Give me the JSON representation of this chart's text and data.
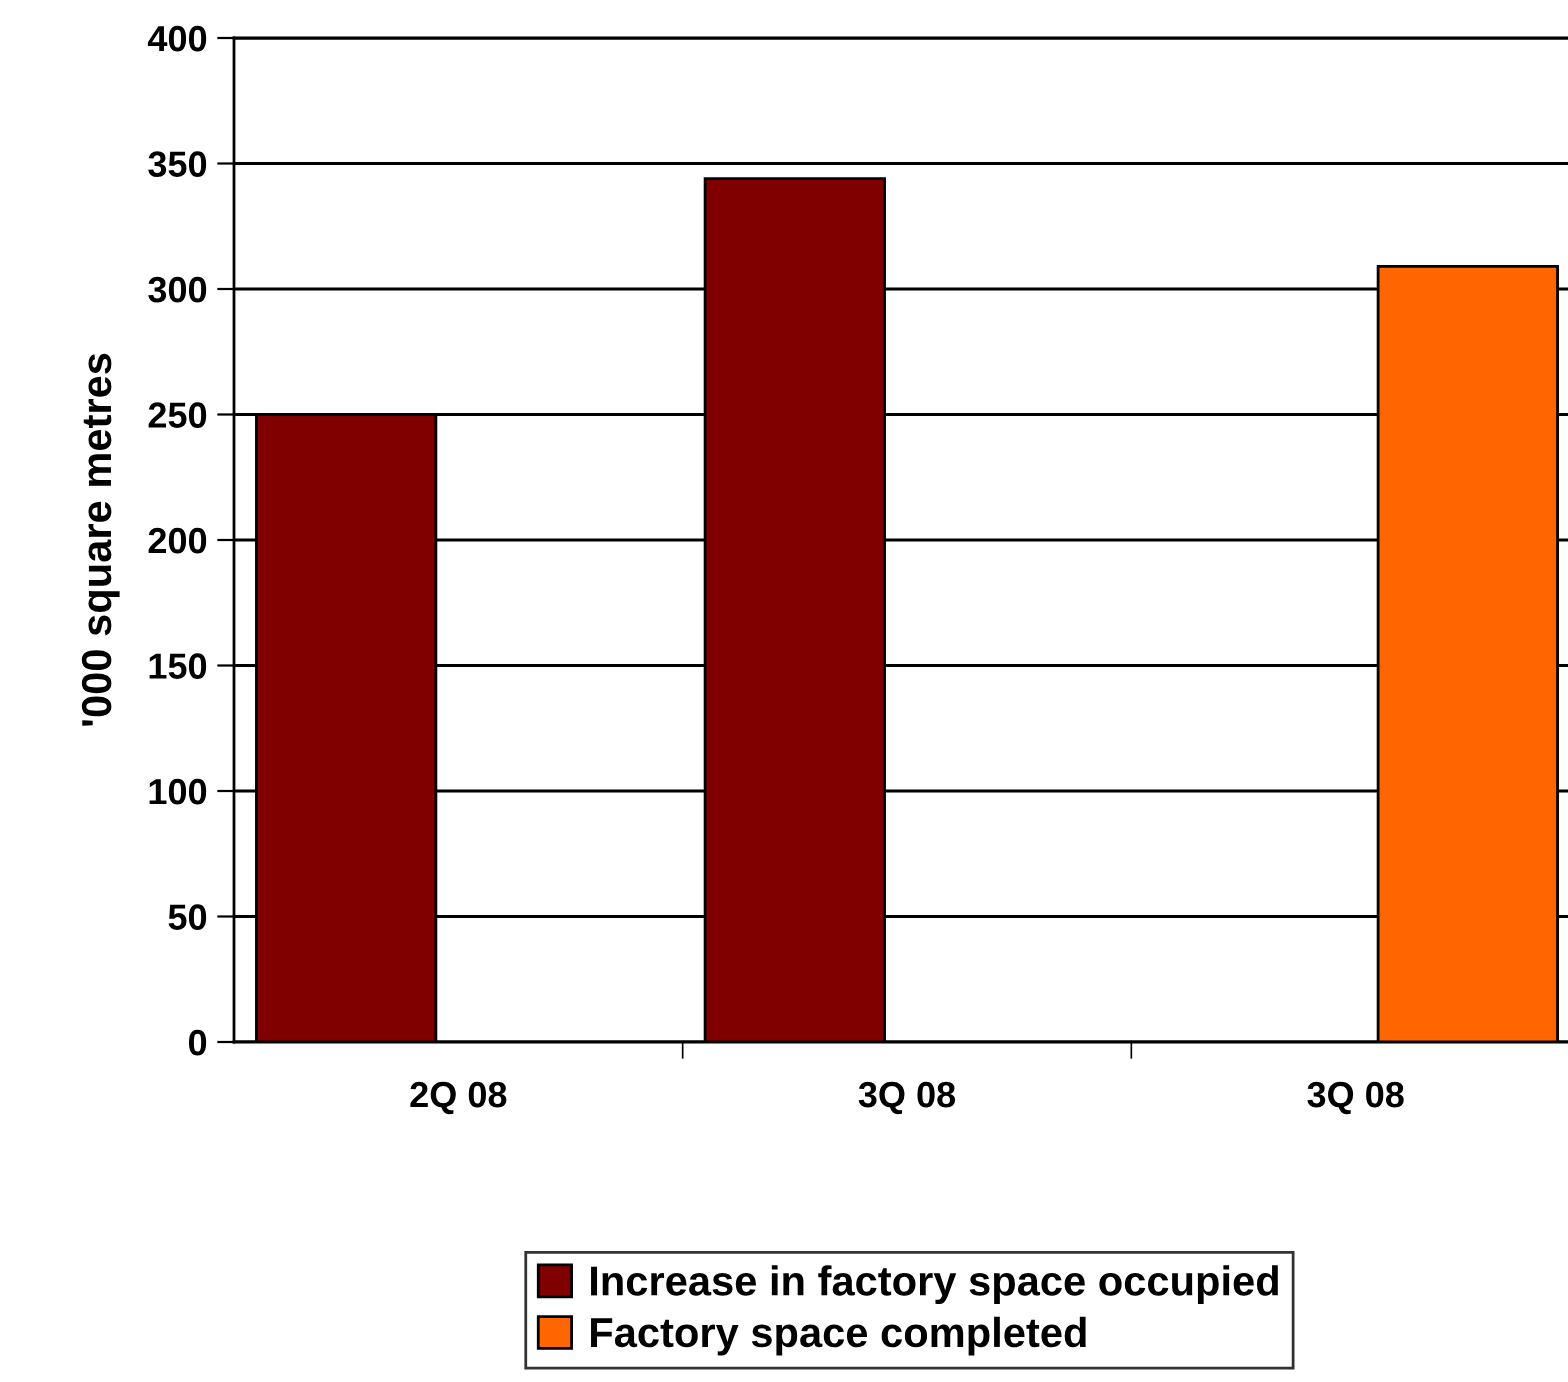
{
  "chart_data": {
    "type": "bar",
    "ylabel": "'000 square metres",
    "categories": [
      "2Q 08",
      "3Q 08",
      "3Q 08"
    ],
    "series": [
      {
        "name": "Increase in factory space occupied",
        "color": "#800000",
        "values": [
          250,
          344,
          null
        ]
      },
      {
        "name": "Factory space completed",
        "color": "#ff6600",
        "values": [
          null,
          null,
          309
        ]
      }
    ],
    "ylim": [
      0,
      400
    ],
    "yticks": [
      0,
      50,
      100,
      150,
      200,
      250,
      300,
      350,
      400
    ],
    "grid": "y",
    "legend": "bottom"
  }
}
